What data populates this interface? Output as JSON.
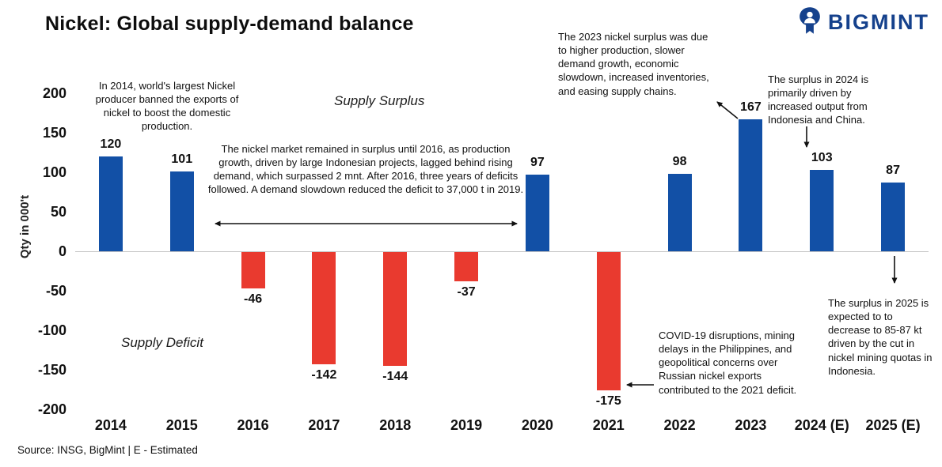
{
  "header": {
    "title": "Nickel: Global supply-demand balance",
    "brand": "BIGMINT"
  },
  "chart_data": {
    "type": "bar",
    "title": "Nickel: Global supply-demand balance",
    "xlabel": "",
    "ylabel": "Qty in 000't",
    "ylim": [
      -200,
      200
    ],
    "yticks": [
      200,
      150,
      100,
      50,
      0,
      -50,
      -100,
      -150,
      -200
    ],
    "grid": false,
    "legend_position": "none",
    "categories": [
      "2014",
      "2015",
      "2016",
      "2017",
      "2018",
      "2019",
      "2020",
      "2021",
      "2022",
      "2023",
      "2024 (E)",
      "2025 (E)"
    ],
    "values": [
      120,
      101,
      -46,
      -142,
      -144,
      -37,
      97,
      -175,
      98,
      167,
      103,
      87
    ],
    "colors": {
      "positive": "#1250a6",
      "negative": "#e93a2f",
      "brand": "#15418c"
    }
  },
  "annotations": {
    "ann_2014": "In 2014, world's largest Nickel producer banned the exports of nickel to boost the domestic production.",
    "supply_surplus": "Supply Surplus",
    "ann_mid": "The nickel market remained in surplus until 2016, as production growth, driven by large Indonesian projects, lagged behind rising demand, which surpassed 2 mnt. After 2016, three years of deficits followed. A demand slowdown reduced the deficit to 37,000 t in 2019.",
    "ann_2023": "The 2023 nickel surplus was due to higher production, slower demand growth, economic slowdown, increased inventories, and easing supply chains.",
    "ann_2024": "The surplus in 2024 is primarily driven by increased output from Indonesia and China.",
    "ann_2025": "The surplus in 2025 is expected to to decrease to 85-87 kt driven by the cut in nickel mining quotas in Indonesia.",
    "supply_deficit": "Supply Deficit",
    "ann_2021": "COVID-19 disruptions, mining delays in the Philippines, and geopolitical concerns over Russian nickel exports contributed to the 2021 deficit."
  },
  "footer": {
    "source": "Source: INSG, BigMint | E - Estimated"
  }
}
